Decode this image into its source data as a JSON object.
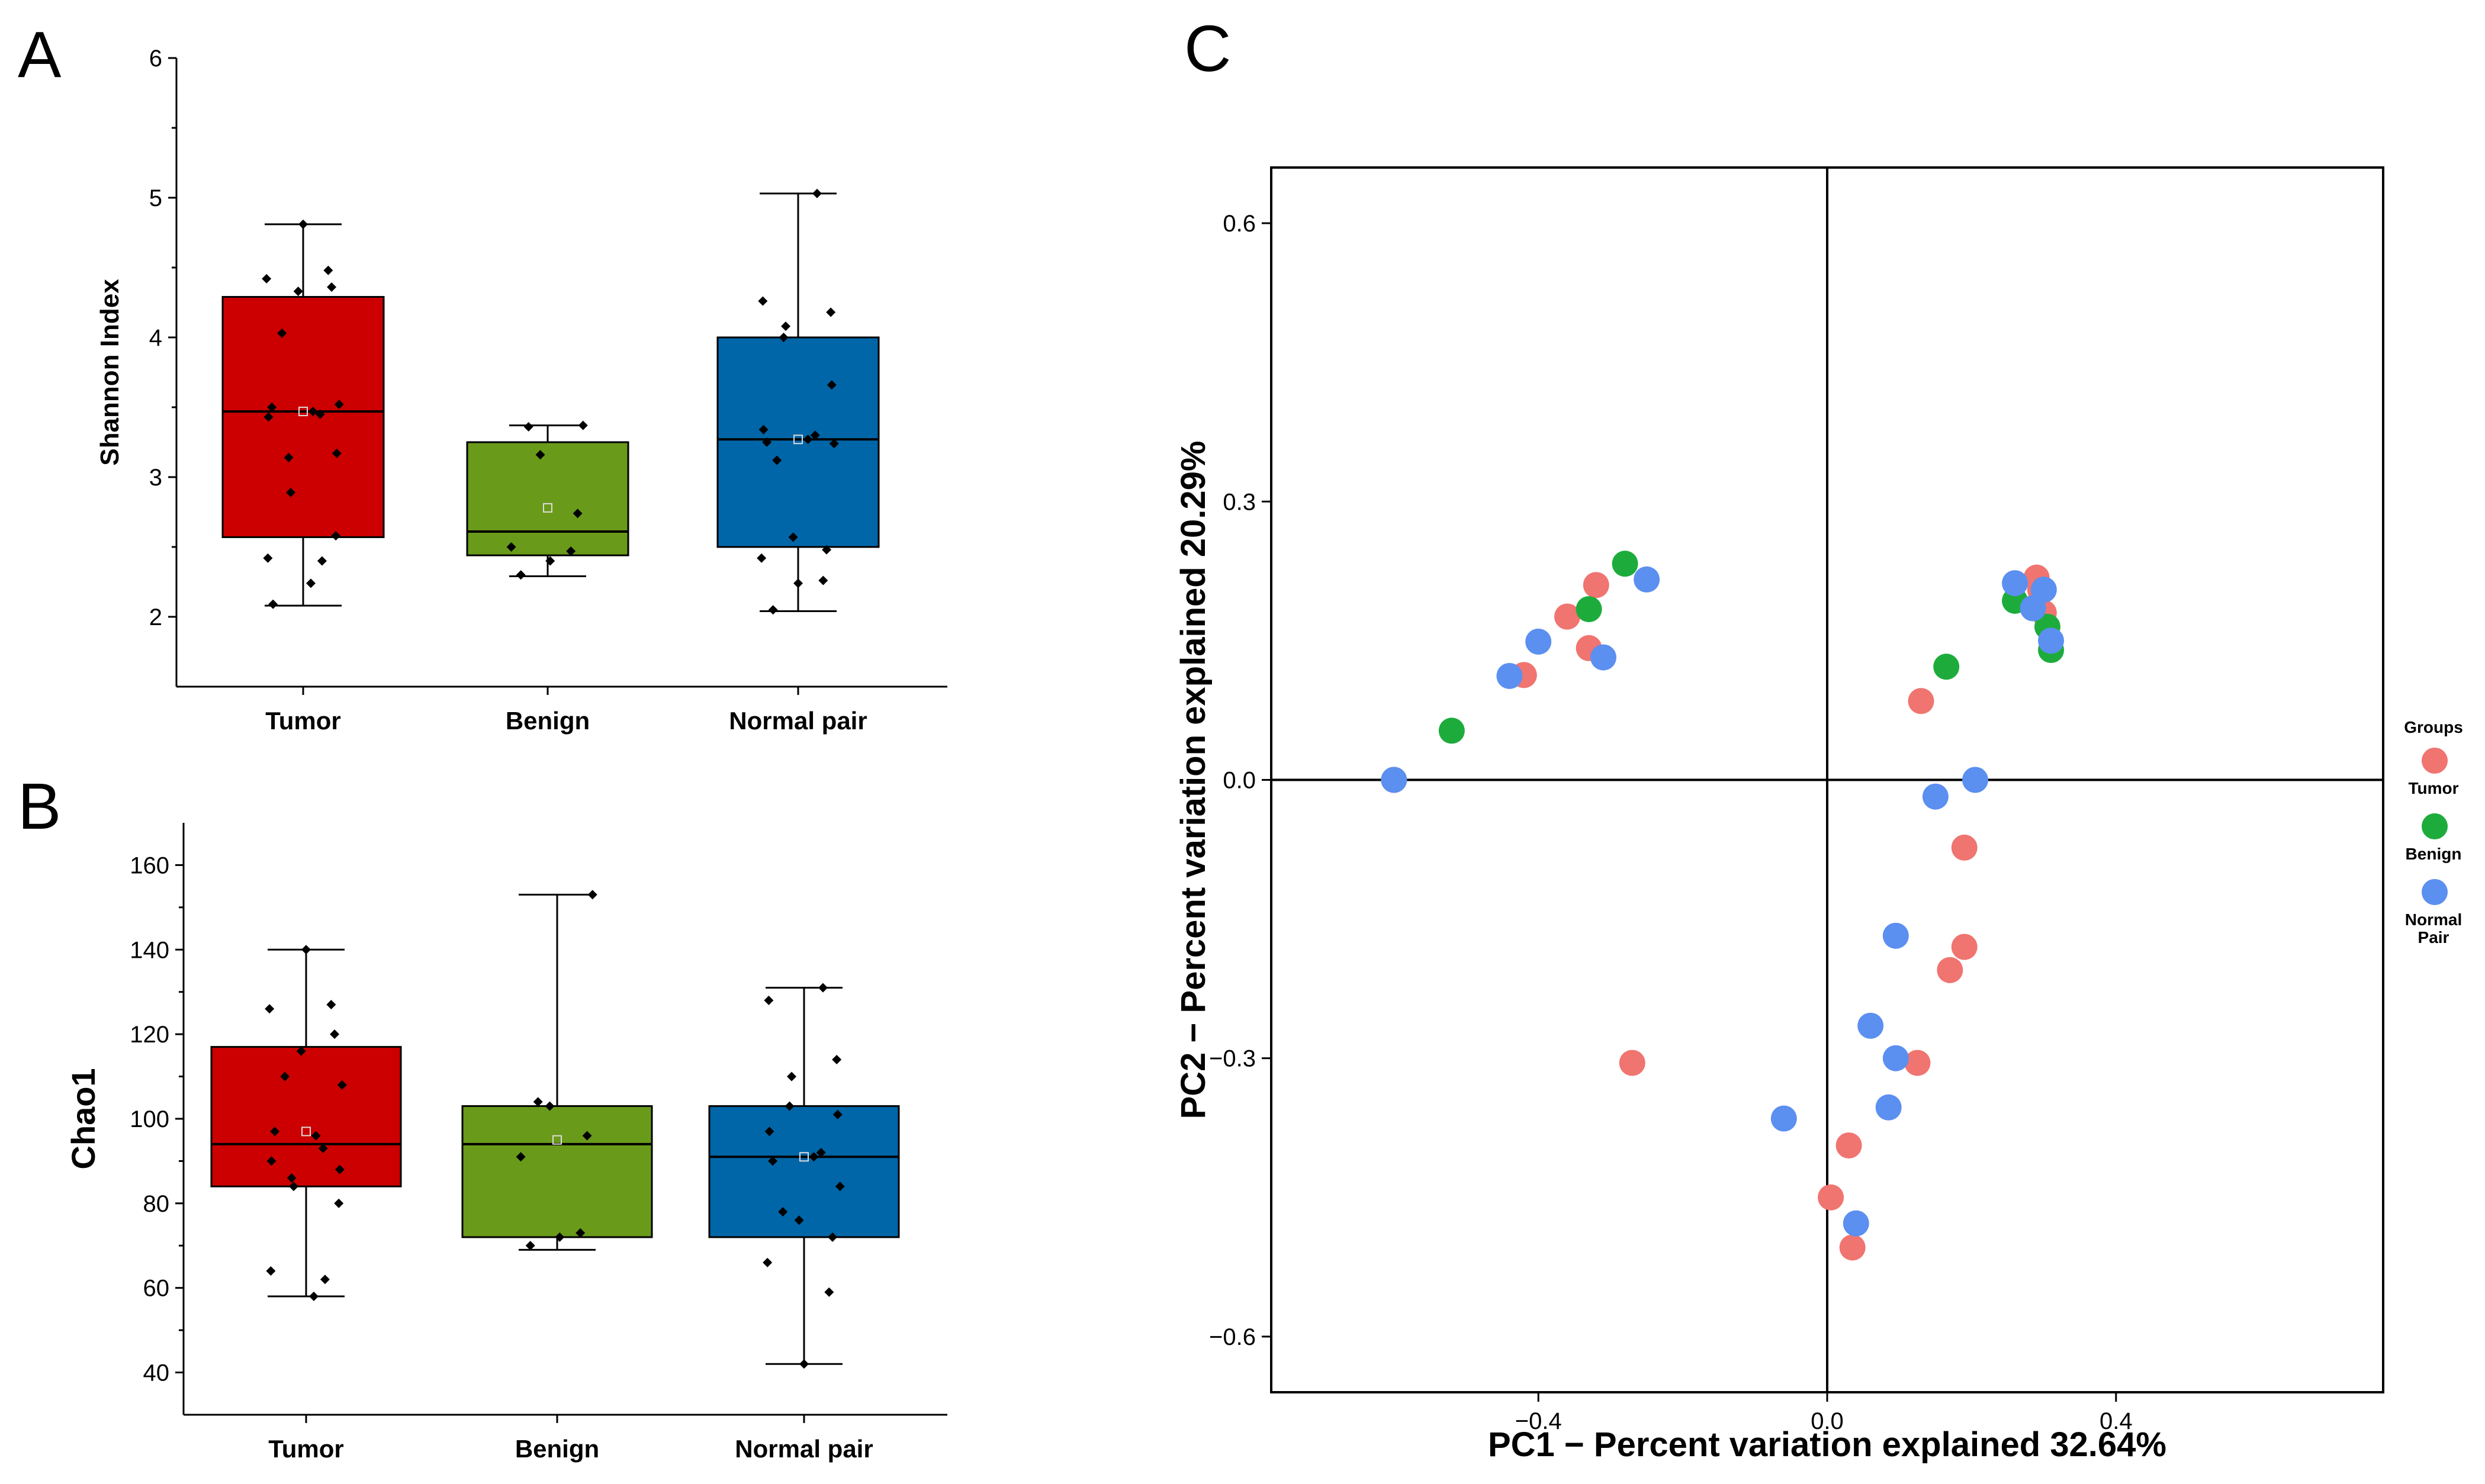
{
  "chart_data": [
    {
      "type": "box",
      "panel_label": "A",
      "ylabel": "Shannon Index",
      "ylim": [
        1.5,
        6
      ],
      "yticks": [
        "2",
        "3",
        "4",
        "5",
        "6"
      ],
      "categories": [
        "Tumor",
        "Benign",
        "Normal pair"
      ],
      "colors": [
        "#cc0000",
        "#6a9a1a",
        "#0066a8"
      ],
      "boxes": [
        {
          "min": 2.08,
          "q1": 2.57,
          "median": 3.47,
          "mean": 3.47,
          "q3": 4.29,
          "max": 4.81,
          "points": [
            4.81,
            4.48,
            4.42,
            4.36,
            4.33,
            4.03,
            3.52,
            3.5,
            3.47,
            3.45,
            3.43,
            3.17,
            3.14,
            2.89,
            2.58,
            2.42,
            2.4,
            2.24,
            2.09
          ]
        },
        {
          "min": 2.29,
          "q1": 2.44,
          "median": 2.61,
          "mean": 2.78,
          "q3": 3.25,
          "max": 3.37,
          "points": [
            3.37,
            3.36,
            3.16,
            2.74,
            2.5,
            2.47,
            2.4,
            2.3
          ]
        },
        {
          "min": 2.04,
          "q1": 2.5,
          "median": 3.27,
          "mean": 3.27,
          "q3": 4.0,
          "max": 5.03,
          "points": [
            5.03,
            4.26,
            4.18,
            4.08,
            4.0,
            3.66,
            3.34,
            3.3,
            3.27,
            3.25,
            3.24,
            3.12,
            2.57,
            2.48,
            2.42,
            2.26,
            2.24,
            2.05
          ]
        }
      ]
    },
    {
      "type": "box",
      "panel_label": "B",
      "ylabel": "Chao1",
      "ylim": [
        30,
        170
      ],
      "yticks": [
        "40",
        "60",
        "80",
        "100",
        "120",
        "140",
        "160"
      ],
      "categories": [
        "Tumor",
        "Benign",
        "Normal pair"
      ],
      "colors": [
        "#cc0000",
        "#6a9a1a",
        "#0066a8"
      ],
      "boxes": [
        {
          "min": 58,
          "q1": 84,
          "median": 94,
          "mean": 97,
          "q3": 117,
          "max": 140,
          "points": [
            140,
            127,
            126,
            120,
            116,
            110,
            108,
            97,
            96,
            93,
            90,
            88,
            86,
            84,
            80,
            64,
            62,
            58
          ]
        },
        {
          "min": 69,
          "q1": 72,
          "median": 94,
          "mean": 95,
          "q3": 103,
          "max": 153,
          "points": [
            153,
            104,
            103,
            96,
            91,
            73,
            72,
            70
          ]
        },
        {
          "min": 42,
          "q1": 72,
          "median": 91,
          "mean": 91,
          "q3": 103,
          "max": 131,
          "points": [
            131,
            128,
            114,
            110,
            103,
            101,
            97,
            92,
            91,
            90,
            84,
            78,
            76,
            72,
            66,
            59,
            42
          ]
        }
      ]
    },
    {
      "type": "scatter",
      "panel_label": "C",
      "xlabel": "PC1 − Percent variation explained 32.64%",
      "ylabel": "PC2 − Percent variation explained 20.29%",
      "xlim": [
        -0.77,
        0.77
      ],
      "ylim": [
        -0.66,
        0.66
      ],
      "xticks": [
        "−0.4",
        "0.0",
        "0.4"
      ],
      "yticks": [
        "−0.6",
        "−0.3",
        "0.0",
        "0.3",
        "0.6"
      ],
      "legend_title": "Groups",
      "series": [
        {
          "name": "Tumor",
          "color": "#f07470",
          "points": [
            [
              -0.6,
              0.0
            ],
            [
              -0.42,
              0.113
            ],
            [
              -0.36,
              0.176
            ],
            [
              -0.33,
              0.142
            ],
            [
              -0.32,
              0.21
            ],
            [
              -0.27,
              -0.305
            ],
            [
              0.13,
              0.085
            ],
            [
              0.19,
              -0.073
            ],
            [
              0.19,
              -0.18
            ],
            [
              0.17,
              -0.205
            ],
            [
              0.125,
              -0.305
            ],
            [
              0.03,
              -0.394
            ],
            [
              0.005,
              -0.45
            ],
            [
              0.035,
              -0.504
            ],
            [
              0.29,
              0.218
            ],
            [
              0.295,
              0.205
            ],
            [
              0.3,
              0.18
            ]
          ]
        },
        {
          "name": "Benign",
          "color": "#1dac3c",
          "points": [
            [
              -0.52,
              0.053
            ],
            [
              -0.33,
              0.184
            ],
            [
              -0.28,
              0.233
            ],
            [
              0.165,
              0.122
            ],
            [
              0.26,
              0.193
            ],
            [
              0.305,
              0.165
            ],
            [
              0.31,
              0.14
            ]
          ]
        },
        {
          "name": "Normal\nPair",
          "color": "#5b8ff0",
          "points": [
            [
              -0.6,
              0.0
            ],
            [
              -0.44,
              0.112
            ],
            [
              -0.4,
              0.149
            ],
            [
              -0.31,
              0.132
            ],
            [
              -0.25,
              0.216
            ],
            [
              0.15,
              -0.018
            ],
            [
              0.205,
              0.0
            ],
            [
              0.095,
              -0.168
            ],
            [
              0.06,
              -0.265
            ],
            [
              0.095,
              -0.3
            ],
            [
              0.085,
              -0.353
            ],
            [
              -0.06,
              -0.365
            ],
            [
              0.04,
              -0.478
            ],
            [
              0.26,
              0.212
            ],
            [
              0.3,
              0.205
            ],
            [
              0.285,
              0.185
            ],
            [
              0.31,
              0.15
            ]
          ]
        }
      ]
    }
  ]
}
